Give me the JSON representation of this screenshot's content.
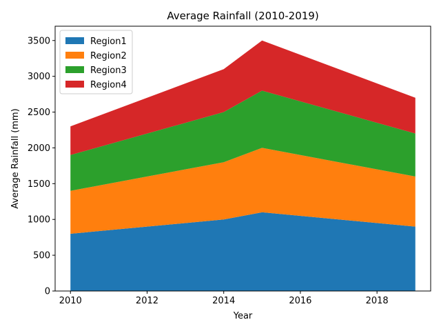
{
  "chart_data": {
    "type": "area",
    "stacked": true,
    "title": "Average Rainfall (2010-2019)",
    "xlabel": "Year",
    "ylabel": "Average Rainfall (mm)",
    "x": [
      2010,
      2014,
      2015,
      2019
    ],
    "xlim": [
      2009.6,
      2019.4
    ],
    "ylim": [
      0,
      3700
    ],
    "xticks": [
      2010,
      2012,
      2014,
      2016,
      2018
    ],
    "yticks": [
      0,
      500,
      1000,
      1500,
      2000,
      2500,
      3000,
      3500
    ],
    "grid": false,
    "legend_position": "upper-left",
    "series": [
      {
        "name": "Region1",
        "color": "#1f77b4",
        "values": [
          800,
          1000,
          1100,
          900
        ]
      },
      {
        "name": "Region2",
        "color": "#ff7f0e",
        "values": [
          600,
          800,
          900,
          700
        ]
      },
      {
        "name": "Region3",
        "color": "#2ca02c",
        "values": [
          500,
          700,
          800,
          600
        ]
      },
      {
        "name": "Region4",
        "color": "#d62728",
        "values": [
          400,
          600,
          700,
          500
        ]
      }
    ]
  }
}
